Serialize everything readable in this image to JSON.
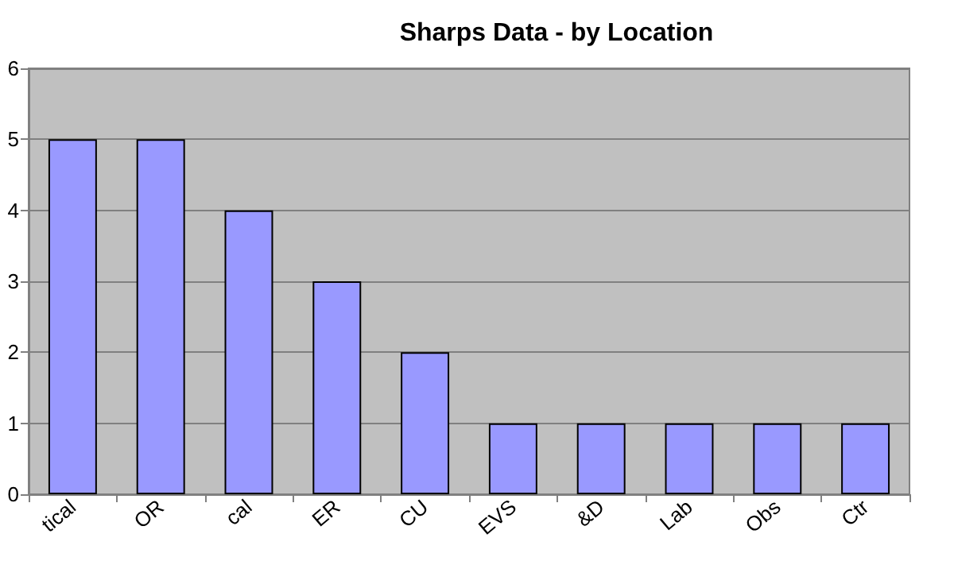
{
  "chart_data": {
    "type": "bar",
    "title": "Sharps Data - by Location",
    "categories": [
      "tical",
      "OR",
      "cal",
      "ER",
      "CU",
      "EVS",
      "&D",
      "Lab",
      "Obs",
      "Ctr"
    ],
    "values": [
      5,
      5,
      4,
      3,
      2,
      1,
      1,
      1,
      1,
      1
    ],
    "color": "#9999ff",
    "ylim": [
      0,
      6
    ],
    "yticks": [
      0,
      1,
      2,
      3,
      4,
      5,
      6
    ],
    "grid": "y"
  }
}
